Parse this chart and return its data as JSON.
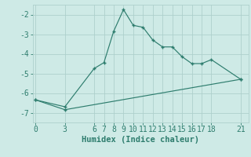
{
  "line1_x": [
    0,
    3,
    6,
    7,
    8,
    9,
    10,
    11,
    12,
    13,
    14,
    15,
    16,
    17,
    18,
    21
  ],
  "line1_y": [
    -6.35,
    -6.7,
    -4.75,
    -4.45,
    -2.85,
    -1.75,
    -2.55,
    -2.65,
    -3.3,
    -3.65,
    -3.65,
    -4.15,
    -4.5,
    -4.5,
    -4.3,
    -5.3
  ],
  "line2_x": [
    0,
    3,
    21
  ],
  "line2_y": [
    -6.35,
    -6.85,
    -5.3
  ],
  "line_color": "#2e7d6e",
  "bg_color": "#ceeae6",
  "grid_color": "#aed0cc",
  "xlabel": "Humidex (Indice chaleur)",
  "xticks": [
    0,
    3,
    6,
    7,
    8,
    9,
    10,
    11,
    12,
    13,
    14,
    15,
    16,
    17,
    18,
    21
  ],
  "yticks": [
    -7,
    -6,
    -5,
    -4,
    -3,
    -2
  ],
  "ylim": [
    -7.5,
    -1.5
  ],
  "xlim": [
    -0.3,
    21.8
  ],
  "xlabel_fontsize": 7.5,
  "tick_fontsize": 7,
  "marker": "+"
}
